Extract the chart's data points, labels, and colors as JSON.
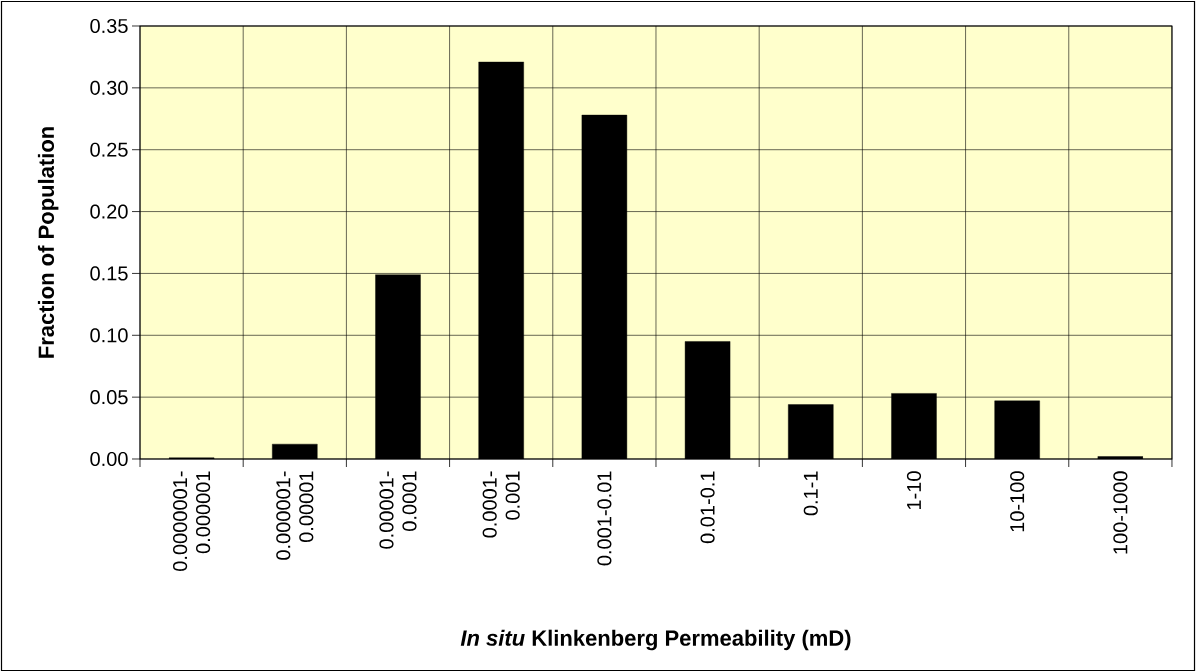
{
  "chart_data": {
    "type": "bar",
    "xlabel": "*In situ* Klinkenberg Permeability (mD)",
    "ylabel": "Fraction of Population",
    "categories": [
      "0.0000001- 0.000001",
      "0.000001- 0.00001",
      "0.00001- 0.0001",
      "0.0001- 0.001",
      "0.001-0.01",
      "0.01-0.1",
      "0.1-1",
      "1-10",
      "10-100",
      "100-1000"
    ],
    "values": [
      0.001,
      0.012,
      0.149,
      0.321,
      0.278,
      0.095,
      0.044,
      0.053,
      0.047,
      0.002
    ],
    "color": "#000000",
    "ylim": [
      0,
      0.35
    ],
    "yticks": [
      {
        "value": 0,
        "label": "0.00"
      },
      {
        "value": 0.05,
        "label": "0.05"
      },
      {
        "value": 0.1,
        "label": "0.10"
      },
      {
        "value": 0.15,
        "label": "0.15"
      },
      {
        "value": 0.2,
        "label": "0.20"
      },
      {
        "value": 0.25,
        "label": "0.25"
      },
      {
        "value": 0.3,
        "label": "0.30"
      },
      {
        "value": 0.35,
        "label": "0.35"
      }
    ],
    "grid": true
  }
}
